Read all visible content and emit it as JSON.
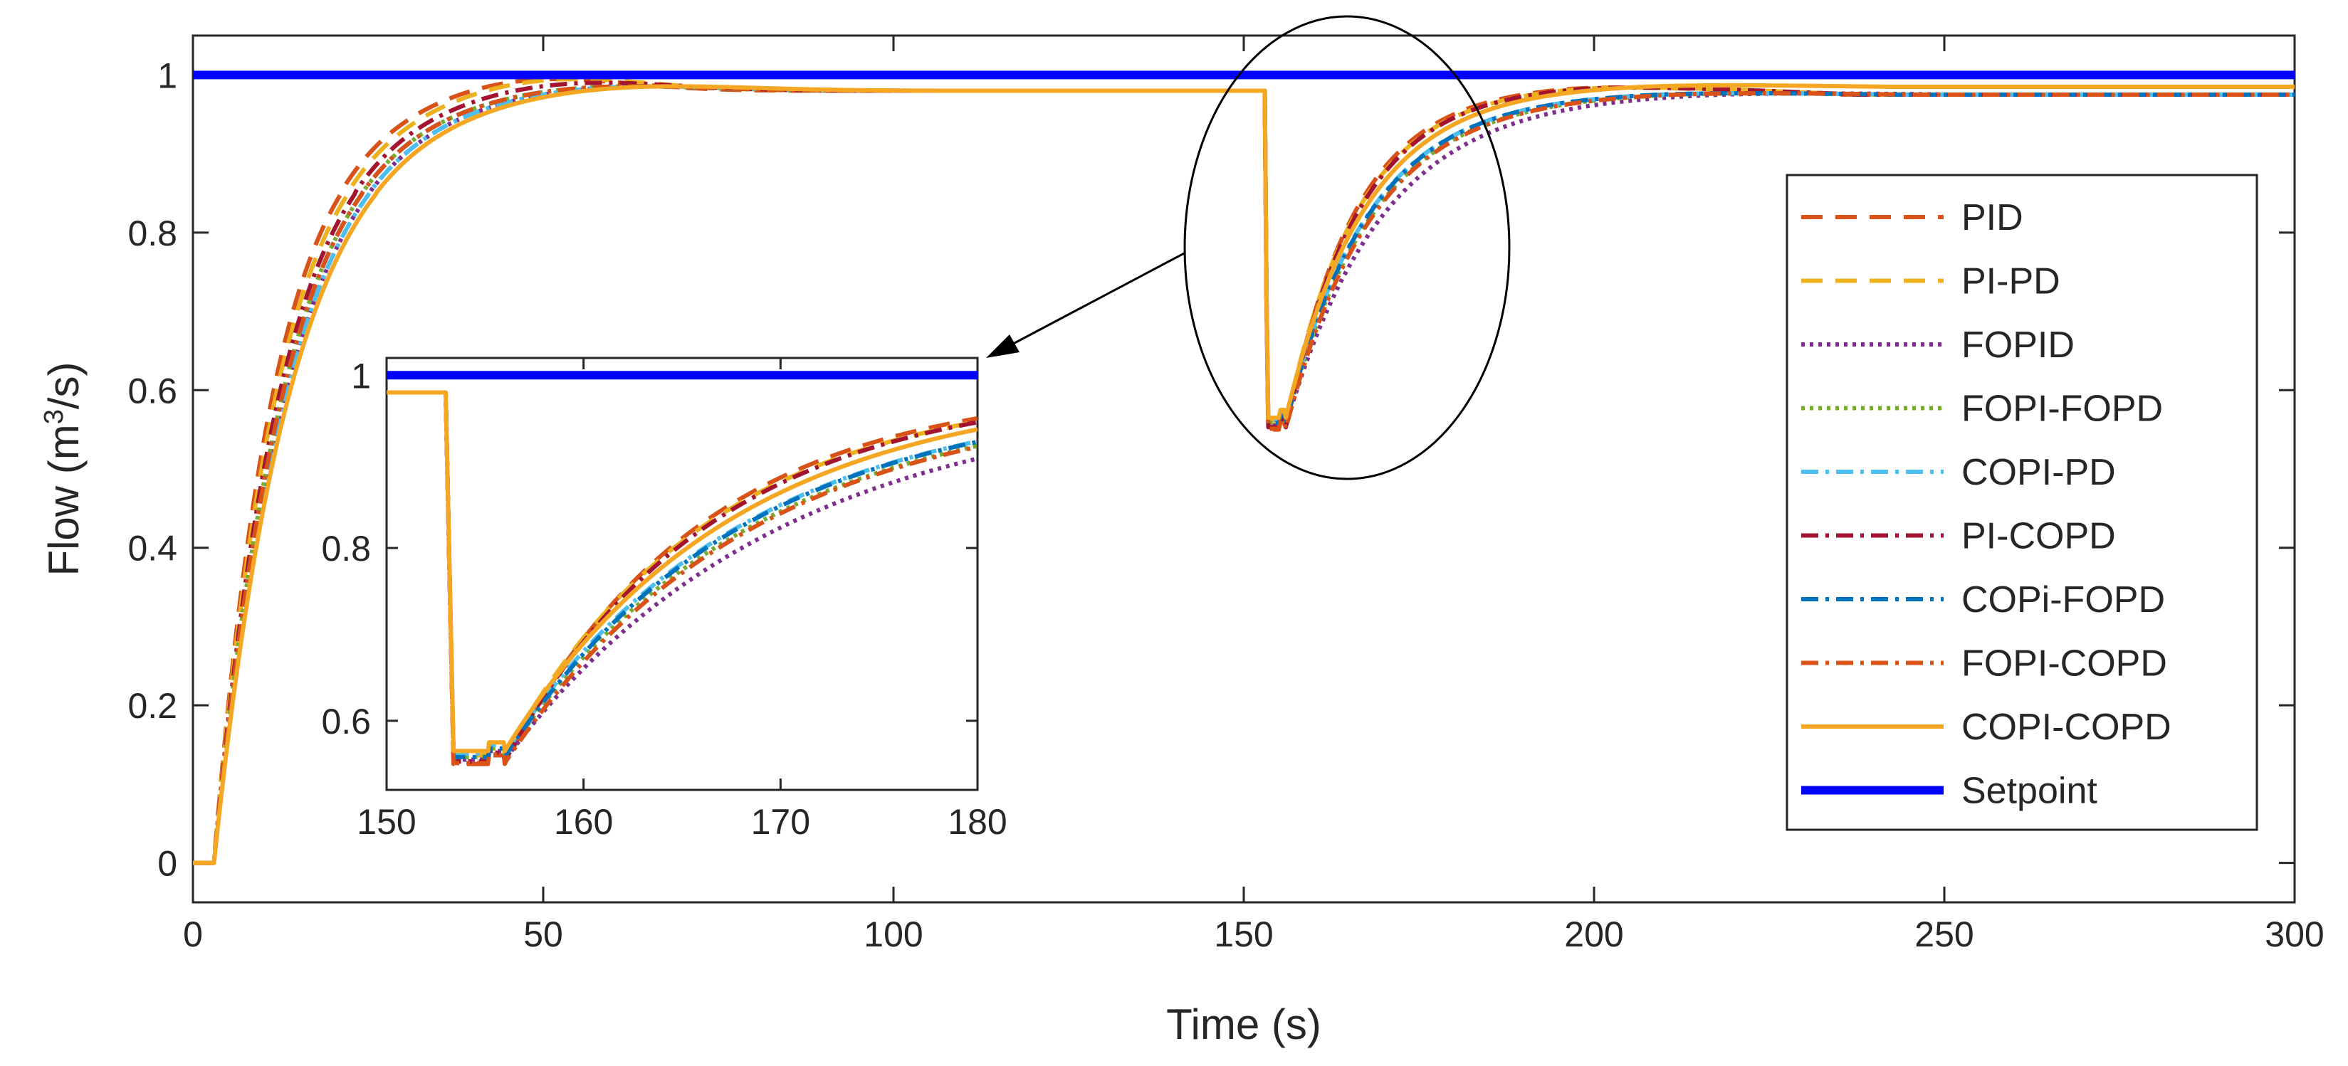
{
  "chart_data": {
    "type": "line",
    "xlabel": "Time (s)",
    "ylabel": {
      "prefix": "Flow  (m",
      "sup": "3",
      "suffix": "/s)"
    },
    "xlim": [
      0,
      300
    ],
    "ylim": [
      -0.05,
      1.05
    ],
    "xticks": [
      "0",
      "50",
      "100",
      "150",
      "200",
      "250",
      "300"
    ],
    "yticks": [
      "0",
      "0.2",
      "0.4",
      "0.6",
      "0.8",
      "1"
    ],
    "grid": false,
    "legend_position": "right",
    "disturbance_time": 153,
    "series": [
      {
        "name": "PID",
        "color": "#D95319",
        "dash": "dashed",
        "rise_tau": 9.0,
        "final": 0.98,
        "overshoot": 1.0,
        "dip_min": 0.55,
        "recovery_tau": 10.0,
        "recovery_final": 0.99,
        "recovery_end": 0.975
      },
      {
        "name": "PI-PD",
        "color": "#EDB120",
        "dash": "dashed",
        "rise_tau": 9.5,
        "final": 0.98,
        "overshoot": 1.0,
        "dip_min": 0.56,
        "recovery_tau": 10.5,
        "recovery_final": 0.99,
        "recovery_end": 0.975
      },
      {
        "name": "FOPID",
        "color": "#7E2F8E",
        "dash": "dotted",
        "rise_tau": 11.0,
        "final": 0.98,
        "overshoot": 0.99,
        "dip_min": 0.555,
        "recovery_tau": 14.0,
        "recovery_final": 0.98,
        "recovery_end": 0.975
      },
      {
        "name": "FOPI-FOPD",
        "color": "#77AC30",
        "dash": "dotted",
        "rise_tau": 10.5,
        "final": 0.98,
        "overshoot": 0.99,
        "dip_min": 0.558,
        "recovery_tau": 12.5,
        "recovery_final": 0.98,
        "recovery_end": 0.975
      },
      {
        "name": "COPI-PD",
        "color": "#4DBEEE",
        "dash": "dashdot",
        "rise_tau": 11.0,
        "final": 0.98,
        "overshoot": 0.99,
        "dip_min": 0.562,
        "recovery_tau": 12.0,
        "recovery_final": 0.98,
        "recovery_end": 0.975
      },
      {
        "name": "PI-COPD",
        "color": "#A2142F",
        "dash": "dashdot",
        "rise_tau": 10.0,
        "final": 0.98,
        "overshoot": 0.995,
        "dip_min": 0.553,
        "recovery_tau": 10.5,
        "recovery_final": 0.99,
        "recovery_end": 0.975
      },
      {
        "name": "COPi-FOPD",
        "color": "#0072BD",
        "dash": "dashdot",
        "rise_tau": 10.5,
        "final": 0.98,
        "overshoot": 0.99,
        "dip_min": 0.558,
        "recovery_tau": 12.0,
        "recovery_final": 0.98,
        "recovery_end": 0.975
      },
      {
        "name": "FOPI-COPD",
        "color": "#D95319",
        "dash": "dashdot",
        "rise_tau": 10.5,
        "final": 0.98,
        "overshoot": 0.99,
        "dip_min": 0.551,
        "recovery_tau": 12.5,
        "recovery_final": 0.98,
        "recovery_end": 0.975
      },
      {
        "name": "COPI-COPD",
        "color": "#F5A623",
        "dash": "solid",
        "rise_tau": 11.5,
        "final": 0.98,
        "overshoot": 0.99,
        "dip_min": 0.565,
        "recovery_tau": 11.5,
        "recovery_final": 0.99,
        "recovery_end": 0.985
      },
      {
        "name": "Setpoint",
        "color": "#0000FF",
        "dash": "solid",
        "constant": 1.0
      }
    ],
    "inset": {
      "xlim": [
        150,
        180
      ],
      "ylim": [
        0.52,
        1.02
      ],
      "xticks": [
        "150",
        "160",
        "170",
        "180"
      ],
      "yticks": [
        "0.6",
        "0.8",
        "1"
      ]
    }
  }
}
